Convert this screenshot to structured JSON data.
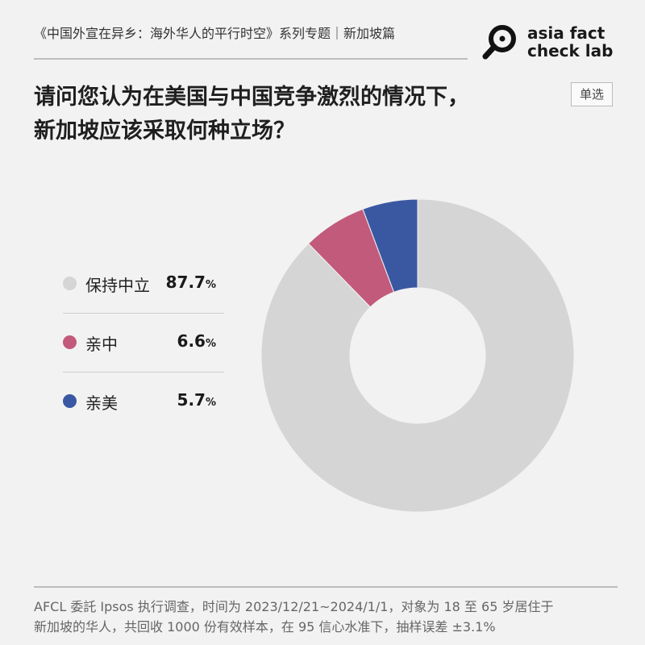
{
  "header": {
    "series_title": "《中国外宣在异乡：海外华人的平行时空》系列专题｜新加坡篇"
  },
  "brand": {
    "line1": "asia fact",
    "line2": "check lab",
    "logo_icon": "magnifier-icon"
  },
  "question": {
    "line1": "请问您认为在美国与中国竞争激烈的情况下，",
    "line2": "新加坡应该采取何种立场？",
    "badge": "单选"
  },
  "chart_data": {
    "type": "pie",
    "variant": "donut",
    "unit": "%",
    "slices": [
      {
        "label": "保持中立",
        "value": 87.7,
        "display": "87.7",
        "color": "#d5d5d5"
      },
      {
        "label": "亲中",
        "value": 6.6,
        "display": "6.6",
        "color": "#c25a7c"
      },
      {
        "label": "亲美",
        "value": 5.7,
        "display": "5.7",
        "color": "#3a58a2"
      }
    ],
    "legend_position": "left"
  },
  "footnote": {
    "line1": "AFCL 委託 Ipsos 执行调查，时间为 2023/12/21~2024/1/1，对象为 18 至 65 岁居住于",
    "line2": "新加坡的华人，共回收 1000 份有效样本，在 95 信心水准下，抽样误差 ±3.1%"
  }
}
